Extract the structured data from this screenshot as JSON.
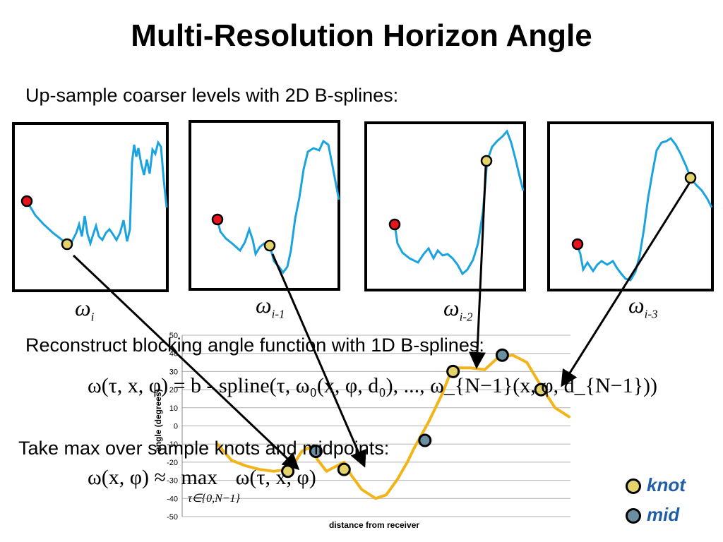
{
  "slide": {
    "title": "Multi-Resolution Horizon Angle",
    "upsample_text": "Up-sample coarser levels with 2D B-splines:",
    "reconstruct_text": "Reconstruct blocking angle function with 1D B-splines:",
    "takemax_text": "Take max over sample knots and midpoints:"
  },
  "panels": [
    {
      "label_symbol": "ω",
      "label_sub": "i"
    },
    {
      "label_symbol": "ω",
      "label_sub": "i-1"
    },
    {
      "label_symbol": "ω",
      "label_sub": "i-2"
    },
    {
      "label_symbol": "ω",
      "label_sub": "i-3"
    }
  ],
  "equations": {
    "reconstruct": "ω(τ, x, φ) = b - spline(τ, ω₀(x, φ, d₀), ..., ω_{N−1}(x, φ, d_{N−1}))",
    "max_lhs": "ω(x, φ) ≈",
    "max_op": "max",
    "max_rhs": "ω(τ, x, φ)",
    "max_sub": "τ∈{0,N−1}"
  },
  "legend": {
    "knot_label": "knot",
    "mid_label": "mid",
    "knot_color": "#e3d36a",
    "mid_color": "#6a8fa0"
  },
  "colors": {
    "curve": "#1ba3df",
    "chart_line": "#f2b519",
    "red_point": "#e8141c",
    "yellow_point": "#e3d36a"
  },
  "chart_data": {
    "type": "line",
    "xlabel": "distance from receiver",
    "ylabel": "angle (degrees)",
    "ylim": [
      -50,
      50
    ],
    "yticks": [
      50,
      40,
      30,
      20,
      10,
      0,
      -10,
      -20,
      -30,
      -40,
      -50
    ],
    "series": [
      {
        "x": [
          0,
          4,
          8,
          12,
          16,
          20,
          22,
          24,
          26,
          29,
          31,
          33,
          36,
          38,
          41,
          45,
          48,
          51,
          54,
          56,
          60,
          64,
          66,
          68,
          72,
          76,
          80,
          84,
          88,
          92,
          96,
          100
        ],
        "values": [
          -10,
          -19,
          -22,
          -24,
          -25,
          -24,
          -20,
          -14,
          -12,
          -20,
          -25,
          -23,
          -20,
          -27,
          -35,
          -40,
          -38,
          -30,
          -20,
          -12,
          2,
          18,
          28,
          32,
          32,
          31,
          38,
          39,
          35,
          22,
          10,
          5
        ]
      }
    ],
    "knots": [
      {
        "x": 20,
        "y": -25
      },
      {
        "x": 36,
        "y": -24
      },
      {
        "x": 67,
        "y": 30
      },
      {
        "x": 92,
        "y": 20
      }
    ],
    "mids": [
      {
        "x": 28,
        "y": -14
      },
      {
        "x": 59,
        "y": -8
      },
      {
        "x": 81,
        "y": 39
      }
    ]
  }
}
